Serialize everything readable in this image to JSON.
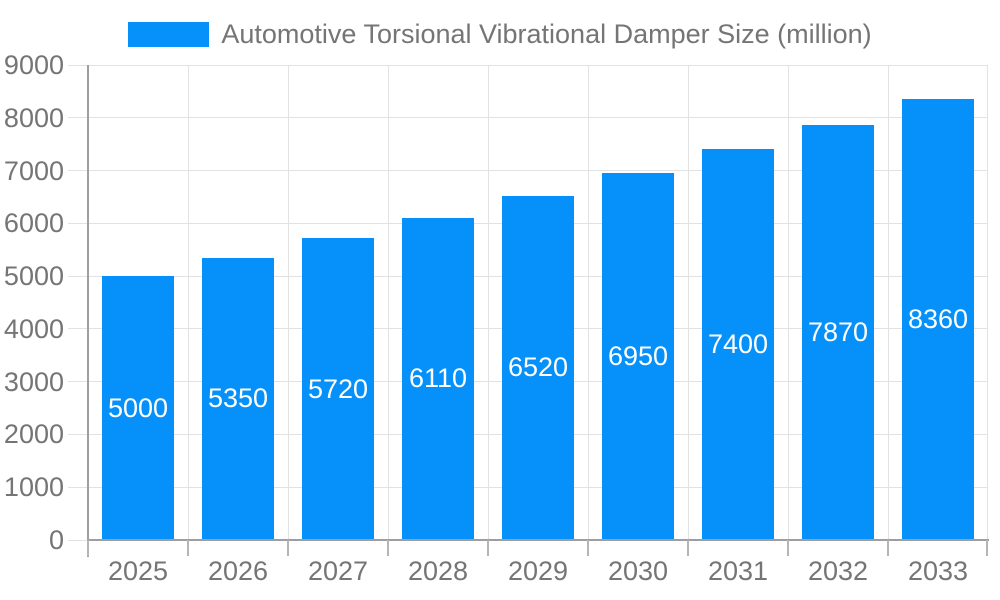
{
  "colors": {
    "bar": "#0590FA",
    "bar_label": "#FFFFFF",
    "axis_label": "#757575",
    "grid_line": "#E2E2E2",
    "axis_line": "#9E9E9E",
    "tick": "#B5B5B5",
    "background": "#FFFFFF"
  },
  "chart_data": {
    "type": "bar",
    "title": "Automotive Torsional Vibrational Damper Size (million)",
    "categories": [
      "2025",
      "2026",
      "2027",
      "2028",
      "2029",
      "2030",
      "2031",
      "2032",
      "2033"
    ],
    "series": [
      {
        "name": "Automotive Torsional Vibrational Damper Size (million)",
        "values": [
          5000,
          5350,
          5720,
          6110,
          6520,
          6950,
          7400,
          7870,
          8360
        ]
      }
    ],
    "xlabel": "",
    "ylabel": "",
    "ylim": [
      0,
      9000
    ],
    "yticks": [
      0,
      1000,
      2000,
      3000,
      4000,
      5000,
      6000,
      7000,
      8000,
      9000
    ],
    "grid": true,
    "legend_position": "top-center",
    "value_labels": "inside-center"
  }
}
